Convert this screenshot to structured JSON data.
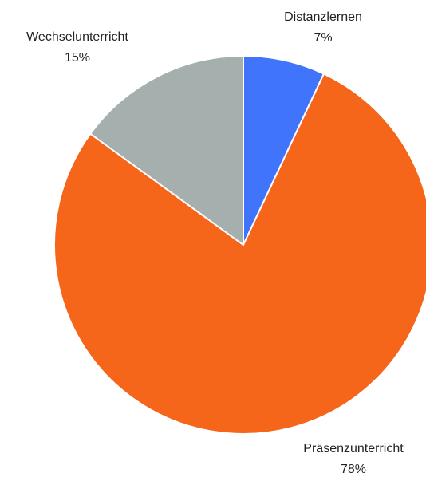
{
  "chart_data": {
    "type": "pie",
    "categories": [
      "Distanzlernen",
      "Präsenzunterricht",
      "Wechselunterricht"
    ],
    "values": [
      7,
      78,
      15
    ],
    "value_labels": [
      "7%",
      "78%",
      "15%"
    ],
    "colors": [
      "#3f74fb",
      "#f5651a",
      "#a5b0ae"
    ]
  }
}
